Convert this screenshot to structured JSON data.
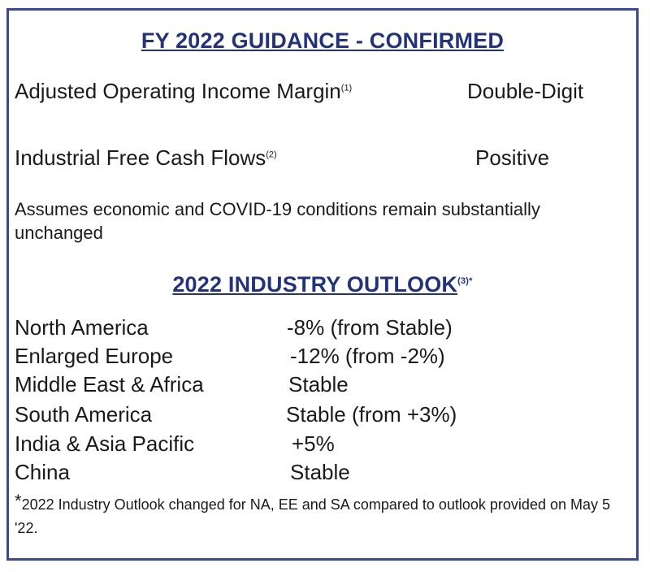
{
  "guidance": {
    "heading": "FY 2022 GUIDANCE - CONFIRMED",
    "items": [
      {
        "label": "Adjusted Operating Income Margin",
        "sup": "(1)",
        "value": "Double-Digit"
      },
      {
        "label": "Industrial Free Cash Flows",
        "sup": "(2)",
        "value": "Positive"
      }
    ],
    "note": "Assumes economic and COVID-19 conditions remain substantially unchanged"
  },
  "outlook": {
    "heading": "2022 INDUSTRY OUTLOOK",
    "heading_sup": "(3)*",
    "regions": [
      {
        "region": "North America",
        "value": "-8% (from Stable)"
      },
      {
        "region": "Enlarged Europe",
        "value": "-12% (from -2%)"
      },
      {
        "region": "Middle East & Africa",
        "value": "Stable"
      },
      {
        "region": "South America",
        "value": "Stable (from +3%)"
      },
      {
        "region": "India & Asia Pacific",
        "value": "+5%"
      },
      {
        "region": "China",
        "value": "Stable"
      }
    ],
    "footnote_star": "*",
    "footnote": "2022 Industry Outlook changed for NA, EE and SA compared to outlook provided on May 5 '22."
  }
}
